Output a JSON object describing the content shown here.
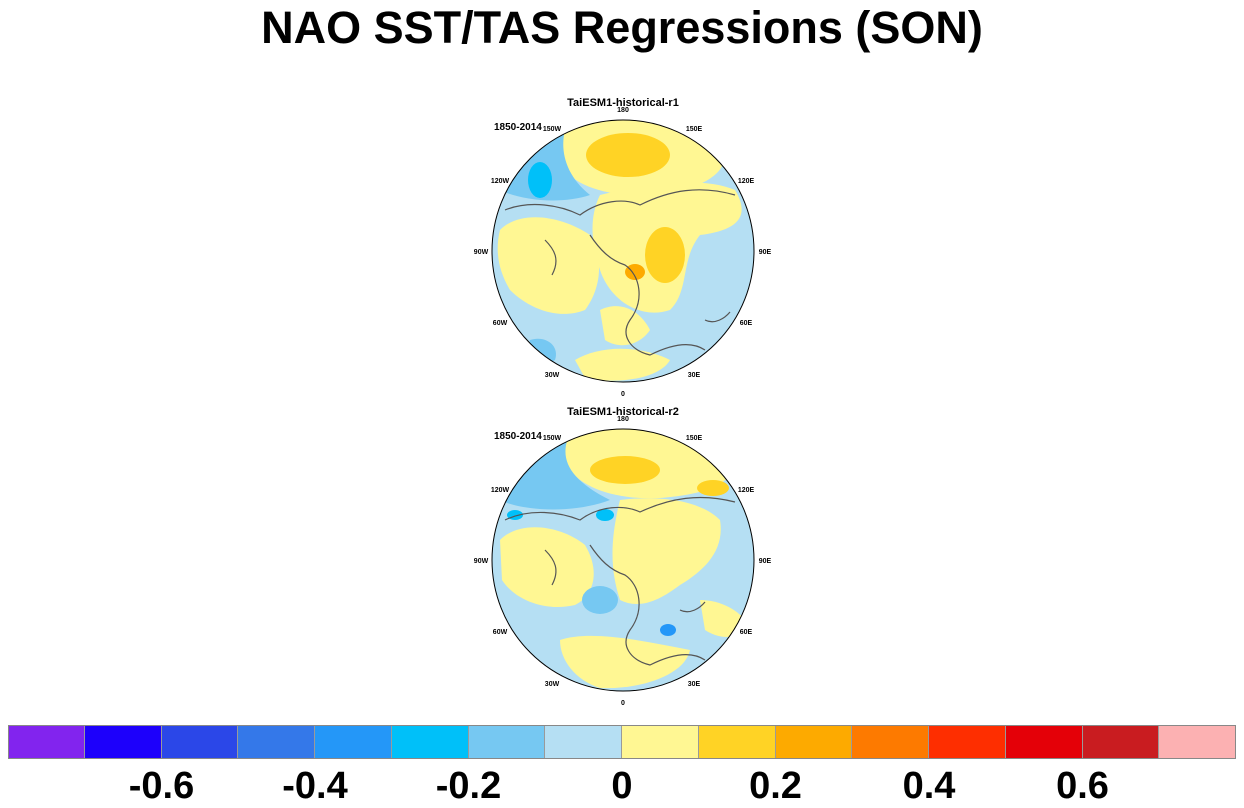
{
  "title": "NAO SST/TAS Regressions (SON)",
  "chart_data": {
    "type": "heatmap",
    "title": "NAO SST/TAS Regressions (SON)",
    "projection": "north-polar-stereographic",
    "panels": [
      {
        "name": "TaiESM1-historical-r1",
        "period": "1850-2014",
        "lon_labels": [
          "180",
          "150E",
          "120E",
          "90E",
          "60E",
          "30E",
          "0",
          "30W",
          "60W",
          "90W",
          "120W",
          "150W"
        ],
        "dominant_values": {
          "north_pacific": 0.2,
          "siberia": 0.15,
          "alaska_gulf": -0.25,
          "north_atlantic": -0.1,
          "europe": -0.05,
          "arctic": 0.05
        }
      },
      {
        "name": "TaiESM1-historical-r2",
        "period": "1850-2014",
        "lon_labels": [
          "180",
          "150E",
          "120E",
          "90E",
          "60E",
          "30E",
          "0",
          "30W",
          "60W",
          "90W",
          "120W",
          "150W"
        ],
        "dominant_values": {
          "north_pacific": 0.2,
          "siberia": 0.05,
          "alaska_gulf": -0.2,
          "north_atlantic": -0.1,
          "europe": 0.05,
          "arctic": 0.05
        }
      }
    ],
    "colorbar": {
      "levels": [
        -0.7,
        -0.6,
        -0.5,
        -0.4,
        -0.3,
        -0.2,
        -0.1,
        0,
        0.1,
        0.2,
        0.3,
        0.4,
        0.5,
        0.6,
        0.7
      ],
      "tick_labels": [
        "-0.6",
        "-0.4",
        "-0.2",
        "0",
        "0.2",
        "0.4",
        "0.6"
      ],
      "colors": [
        "#8224ee",
        "#1d00fb",
        "#2b47e8",
        "#3478e9",
        "#2497f8",
        "#00c0f9",
        "#76c8f2",
        "#b5dff3",
        "#fff793",
        "#ffd325",
        "#fdaa00",
        "#fd7a00",
        "#fe2e00",
        "#e40008",
        "#c91c20",
        "#fcb1b2"
      ]
    }
  }
}
